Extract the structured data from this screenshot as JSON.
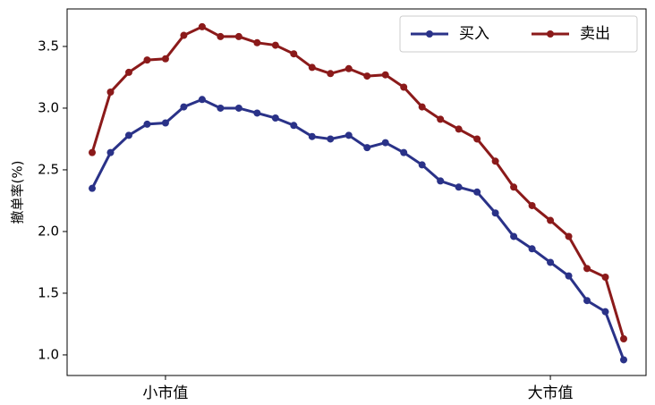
{
  "chart_data": {
    "type": "line",
    "ylabel": "撤单率(%)",
    "categories": [
      null,
      null,
      null,
      null,
      "小市值",
      null,
      null,
      null,
      null,
      null,
      null,
      null,
      null,
      null,
      null,
      null,
      null,
      null,
      null,
      null,
      null,
      null,
      null,
      null,
      null,
      "大市值",
      null,
      null,
      null,
      null
    ],
    "series": [
      {
        "name": "买入",
        "color": "#2a3288",
        "values": [
          2.35,
          2.64,
          2.78,
          2.87,
          2.88,
          3.01,
          3.07,
          3.0,
          3.0,
          2.96,
          2.92,
          2.86,
          2.77,
          2.75,
          2.78,
          2.68,
          2.72,
          2.64,
          2.54,
          2.41,
          2.36,
          2.32,
          2.15,
          1.96,
          1.86,
          1.75,
          1.64,
          1.44,
          1.35,
          0.96
        ]
      },
      {
        "name": "卖出",
        "color": "#8b1a1a",
        "values": [
          2.64,
          3.13,
          3.29,
          3.39,
          3.4,
          3.59,
          3.66,
          3.58,
          3.58,
          3.53,
          3.51,
          3.44,
          3.33,
          3.28,
          3.32,
          3.26,
          3.27,
          3.17,
          3.01,
          2.91,
          2.83,
          2.75,
          2.57,
          2.36,
          2.21,
          2.09,
          1.96,
          1.7,
          1.63,
          1.13
        ]
      }
    ],
    "ylim": [
      0.833,
      3.804
    ],
    "yticks": [
      {
        "value": 1,
        "label": "1.0"
      },
      1.5,
      {
        "value": 2,
        "label": "2.0"
      },
      2.5,
      {
        "value": 3,
        "label": "3.0"
      },
      3.5
    ],
    "legend": "upper right"
  }
}
